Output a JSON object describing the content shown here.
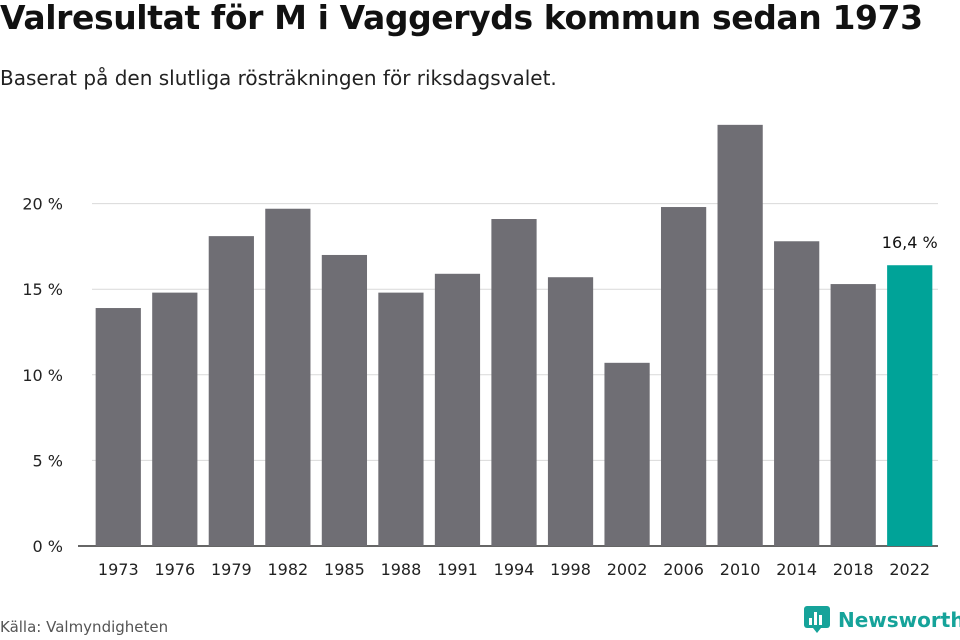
{
  "title": "Valresultat för M i Vaggeryds kommun sedan 1973",
  "subtitle": "Baserat på den slutliga rösträkningen för riksdagsvalet.",
  "source": "Källa: Valmyndigheten",
  "brand": {
    "name": "Newsworthy",
    "icon": "newsworthy-logo-icon",
    "color": "#16a39a"
  },
  "chart_data": {
    "type": "bar",
    "categories": [
      "1973",
      "1976",
      "1979",
      "1982",
      "1985",
      "1988",
      "1991",
      "1994",
      "1998",
      "2002",
      "2006",
      "2010",
      "2014",
      "2018",
      "2022"
    ],
    "values": [
      13.9,
      14.8,
      18.1,
      19.7,
      17.0,
      14.8,
      15.9,
      19.1,
      15.7,
      10.7,
      19.8,
      24.6,
      17.8,
      15.3,
      16.4
    ],
    "ylim": [
      0,
      25
    ],
    "yticks": [
      0,
      5,
      10,
      15,
      20
    ],
    "ytick_labels": [
      "0 %",
      "5 %",
      "10 %",
      "15 %",
      "20 %"
    ],
    "data_labels": [
      {
        "category": "2022",
        "text": "16,4 %"
      }
    ],
    "highlight_category": "2022",
    "colors": {
      "bar": "#6f6e74",
      "highlight": "#00a398",
      "grid": "#d9d9d9",
      "axis": "#333333"
    },
    "grid": true,
    "legend": "none"
  }
}
